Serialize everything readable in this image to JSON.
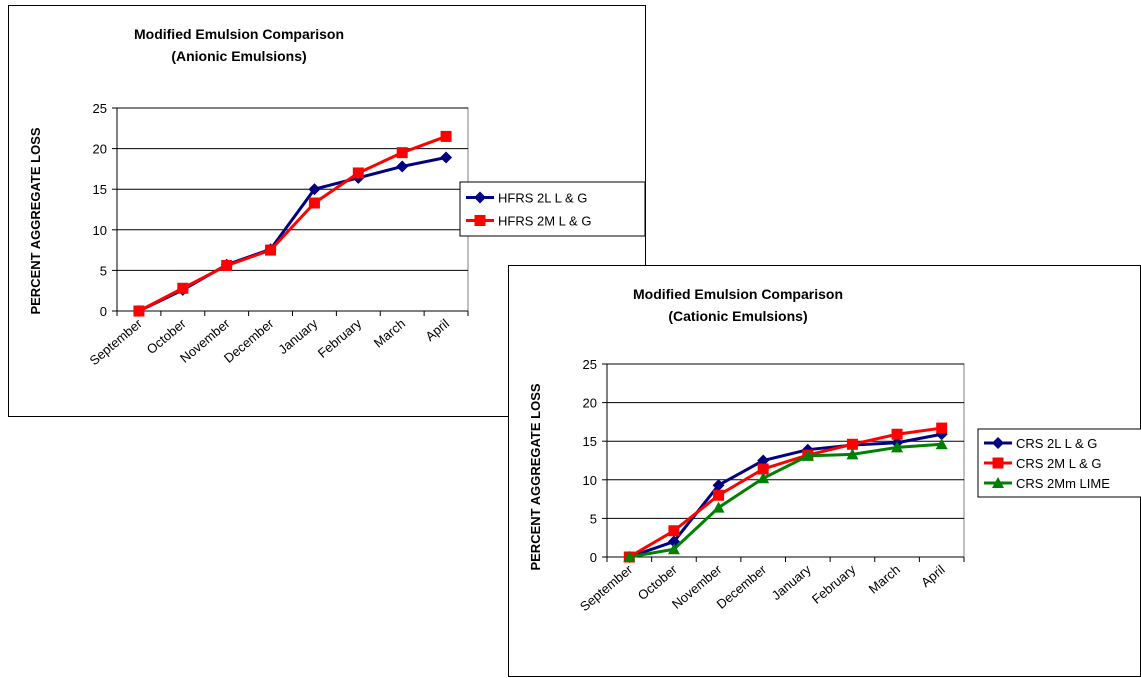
{
  "colors": {
    "navy": "#000080",
    "red": "#ff0000",
    "green": "#008000",
    "gray_plot": "#808080"
  },
  "chart_data": [
    {
      "type": "line",
      "title_line1": "Modified Emulsion Comparison",
      "title_line2": "(Anionic Emulsions)",
      "ylabel": "PERCENT AGGREGATE LOSS",
      "xlabel": "",
      "categories": [
        "September",
        "October",
        "November",
        "December",
        "January",
        "February",
        "March",
        "April"
      ],
      "ylim": [
        0,
        25
      ],
      "yticks": [
        "0",
        "5",
        "10",
        "15",
        "20",
        "25"
      ],
      "grid": true,
      "legend_position": "right",
      "series": [
        {
          "name": "HFRS  2L L & G",
          "color": "#000080",
          "marker": "diamond",
          "values": [
            0,
            2.6,
            5.7,
            7.6,
            15.0,
            16.4,
            17.8,
            18.9
          ]
        },
        {
          "name": "HFRS 2M L & G",
          "color": "#ff0000",
          "marker": "square",
          "values": [
            0,
            2.8,
            5.6,
            7.5,
            13.3,
            17.0,
            19.5,
            21.5
          ]
        }
      ]
    },
    {
      "type": "line",
      "title_line1": "Modified Emulsion Comparison",
      "title_line2": "(Cationic Emulsions)",
      "ylabel": "PERCENT AGGREGATE LOSS",
      "xlabel": "",
      "categories": [
        "September",
        "October",
        "November",
        "December",
        "January",
        "February",
        "March",
        "April"
      ],
      "ylim": [
        0,
        25
      ],
      "yticks": [
        "0",
        "5",
        "10",
        "15",
        "20",
        "25"
      ],
      "grid": true,
      "legend_position": "right",
      "series": [
        {
          "name": "CRS 2L L & G",
          "color": "#000080",
          "marker": "diamond",
          "values": [
            0,
            2.0,
            9.3,
            12.5,
            13.9,
            14.5,
            14.8,
            15.9
          ]
        },
        {
          "name": "CRS 2M L & G",
          "color": "#ff0000",
          "marker": "square",
          "values": [
            0,
            3.4,
            8.0,
            11.4,
            13.2,
            14.6,
            15.9,
            16.7
          ]
        },
        {
          "name": "CRS 2Mm LIME",
          "color": "#008000",
          "marker": "triangle",
          "values": [
            0,
            1.0,
            6.4,
            10.2,
            13.1,
            13.3,
            14.2,
            14.6
          ]
        }
      ]
    }
  ]
}
